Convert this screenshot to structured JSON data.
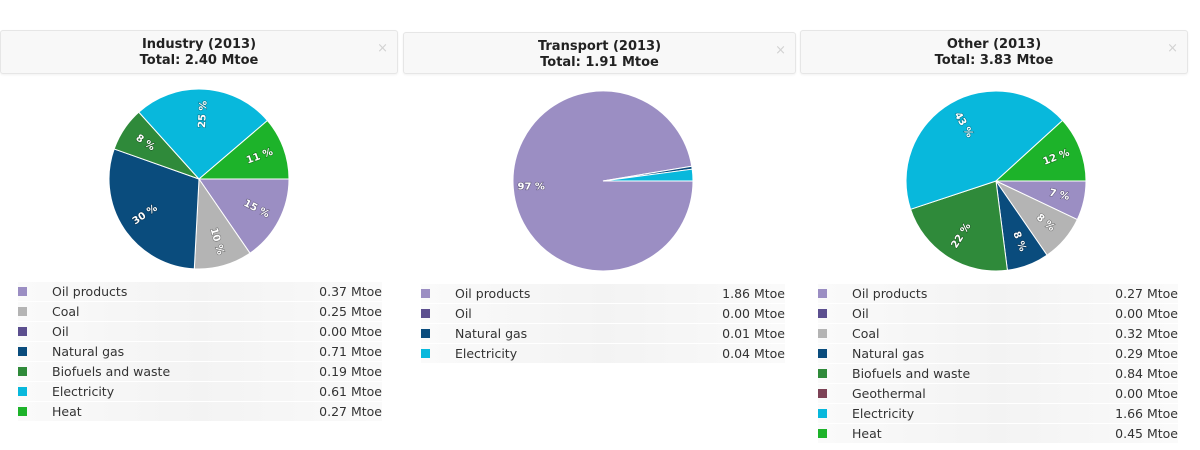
{
  "colors": {
    "Oil products": "#9b8ec3",
    "Coal": "#b4b4b4",
    "Oil": "#5c4f8f",
    "Natural gas": "#0a4c7d",
    "Biofuels and waste": "#2f8a3a",
    "Geothermal": "#7d4256",
    "Electricity": "#08b8dc",
    "Heat": "#1db32a"
  },
  "close_glyph": "×",
  "panels": [
    {
      "title": "Industry (2013)",
      "total": "Total: 2.40 Mtoe",
      "legend": [
        {
          "name": "Oil products",
          "value": "0.37 Mtoe"
        },
        {
          "name": "Coal",
          "value": "0.25 Mtoe"
        },
        {
          "name": "Oil",
          "value": "0.00 Mtoe"
        },
        {
          "name": "Natural gas",
          "value": "0.71 Mtoe"
        },
        {
          "name": "Biofuels and waste",
          "value": "0.19 Mtoe"
        },
        {
          "name": "Electricity",
          "value": "0.61 Mtoe"
        },
        {
          "name": "Heat",
          "value": "0.27 Mtoe"
        }
      ]
    },
    {
      "title": "Transport (2013)",
      "total": "Total: 1.91 Mtoe",
      "legend": [
        {
          "name": "Oil products",
          "value": "1.86 Mtoe"
        },
        {
          "name": "Oil",
          "value": "0.00 Mtoe"
        },
        {
          "name": "Natural gas",
          "value": "0.01 Mtoe"
        },
        {
          "name": "Electricity",
          "value": "0.04 Mtoe"
        }
      ]
    },
    {
      "title": "Other (2013)",
      "total": "Total: 3.83 Mtoe",
      "legend": [
        {
          "name": "Oil products",
          "value": "0.27 Mtoe"
        },
        {
          "name": "Oil",
          "value": "0.00 Mtoe"
        },
        {
          "name": "Coal",
          "value": "0.32 Mtoe"
        },
        {
          "name": "Natural gas",
          "value": "0.29 Mtoe"
        },
        {
          "name": "Biofuels and waste",
          "value": "0.84 Mtoe"
        },
        {
          "name": "Geothermal",
          "value": "0.00 Mtoe"
        },
        {
          "name": "Electricity",
          "value": "1.66 Mtoe"
        },
        {
          "name": "Heat",
          "value": "0.45 Mtoe"
        }
      ]
    }
  ],
  "chart_data": [
    {
      "type": "pie",
      "title": "Industry (2013)",
      "subtitle": "Total: 2.40 Mtoe",
      "slices": [
        {
          "name": "Oil products",
          "value": 0.37,
          "label": "15 %"
        },
        {
          "name": "Coal",
          "value": 0.25,
          "label": "10 %"
        },
        {
          "name": "Oil",
          "value": 0.0,
          "label": ""
        },
        {
          "name": "Natural gas",
          "value": 0.71,
          "label": "30 %"
        },
        {
          "name": "Biofuels and waste",
          "value": 0.19,
          "label": "8 %"
        },
        {
          "name": "Electricity",
          "value": 0.61,
          "label": "25 %"
        },
        {
          "name": "Heat",
          "value": 0.27,
          "label": "11 %"
        }
      ]
    },
    {
      "type": "pie",
      "title": "Transport (2013)",
      "subtitle": "Total: 1.91 Mtoe",
      "slices": [
        {
          "name": "Oil products",
          "value": 1.86,
          "label": "97 %"
        },
        {
          "name": "Oil",
          "value": 0.0,
          "label": ""
        },
        {
          "name": "Natural gas",
          "value": 0.01,
          "label": ""
        },
        {
          "name": "Electricity",
          "value": 0.04,
          "label": ""
        }
      ]
    },
    {
      "type": "pie",
      "title": "Other (2013)",
      "subtitle": "Total: 3.83 Mtoe",
      "slices": [
        {
          "name": "Oil products",
          "value": 0.27,
          "label": "7 %"
        },
        {
          "name": "Oil",
          "value": 0.0,
          "label": ""
        },
        {
          "name": "Coal",
          "value": 0.32,
          "label": "8 %"
        },
        {
          "name": "Natural gas",
          "value": 0.29,
          "label": "8 %"
        },
        {
          "name": "Biofuels and waste",
          "value": 0.84,
          "label": "22 %"
        },
        {
          "name": "Geothermal",
          "value": 0.0,
          "label": ""
        },
        {
          "name": "Electricity",
          "value": 1.66,
          "label": "43 %"
        },
        {
          "name": "Heat",
          "value": 0.45,
          "label": "12 %"
        }
      ]
    }
  ]
}
